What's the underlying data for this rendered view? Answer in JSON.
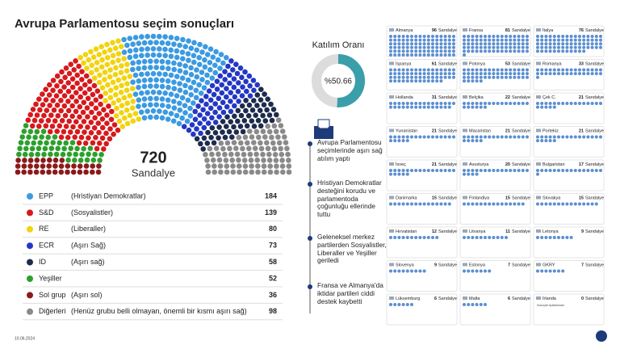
{
  "title": "Avrupa Parlamentosu seçim sonuçları",
  "parliament": {
    "total": 720,
    "total_label": "Sandalye",
    "groups": [
      {
        "name": "EPP",
        "desc": "(Hristiyan Demokratlar)",
        "seats": 184,
        "color": "#3b9ae1"
      },
      {
        "name": "S&D",
        "desc": "(Sosyalistler)",
        "seats": 139,
        "color": "#d7191c"
      },
      {
        "name": "RE",
        "desc": "(Liberaller)",
        "seats": 80,
        "color": "#f2d30f"
      },
      {
        "name": "ECR",
        "desc": "(Aşırı Sağ)",
        "seats": 73,
        "color": "#2337c6"
      },
      {
        "name": "ID",
        "desc": "(Aşırı sağ)",
        "seats": 58,
        "color": "#1d2b4c"
      },
      {
        "name": "Yeşiller",
        "seats": 52,
        "color": "#2ca02c"
      },
      {
        "name": "Sol grup",
        "desc": "(Aşırı sol)",
        "seats": 36,
        "color": "#8b1a1a"
      },
      {
        "name": "Diğerleri",
        "desc": "(Henüz grubu belli olmayan, önemli bir kısmı aşırı sağ)",
        "seats": 98,
        "color": "#8a8a8a"
      }
    ]
  },
  "turnout": {
    "title": "Katılım Oranı",
    "value": 50.66,
    "label": "%50.66",
    "color": "#3a9faa"
  },
  "notes": [
    "Avrupa Parlamentosu seçimlerinde aşırı sağ atılım yaptı",
    "Hristiyan Demokratlar desteğini korudu ve parlamentoda çoğunluğu ellerinde tuttu",
    "Geleneksel merkez partilerden Sosyalistler, Liberaller ve Yeşiller geriledi",
    "Fransa ve Almanya'da iktidar partileri ciddi destek kaybetti"
  ],
  "countries": {
    "unit": "Sandalye",
    "dot_color": "#5b8fd0",
    "items": [
      {
        "name": "Almanya",
        "seats": 96
      },
      {
        "name": "Fransa",
        "seats": 81
      },
      {
        "name": "İtalya",
        "seats": 76
      },
      {
        "name": "İspanya",
        "seats": 61
      },
      {
        "name": "Polonya",
        "seats": 53
      },
      {
        "name": "Romanya",
        "seats": 33
      },
      {
        "name": "Hollanda",
        "seats": 31
      },
      {
        "name": "Belçika",
        "seats": 22
      },
      {
        "name": "Çek C.",
        "seats": 21
      },
      {
        "name": "Yunanistan",
        "seats": 21
      },
      {
        "name": "Macaristan",
        "seats": 21
      },
      {
        "name": "Portekiz",
        "seats": 21
      },
      {
        "name": "İsveç",
        "seats": 21
      },
      {
        "name": "Avusturya",
        "seats": 20
      },
      {
        "name": "Bulgaristan",
        "seats": 17
      },
      {
        "name": "Danimarka",
        "seats": 15
      },
      {
        "name": "Finlandiya",
        "seats": 15
      },
      {
        "name": "Slovakya",
        "seats": 15
      },
      {
        "name": "Hırvatistan",
        "seats": 12
      },
      {
        "name": "Litvanya",
        "seats": 11
      },
      {
        "name": "Letonya",
        "seats": 9
      },
      {
        "name": "Slovenya",
        "seats": 9
      },
      {
        "name": "Estonya",
        "seats": 7
      },
      {
        "name": "GKRY",
        "seats": 7
      },
      {
        "name": "Lüksemburg",
        "seats": 6
      },
      {
        "name": "Malta",
        "seats": 6
      },
      {
        "name": "İrlanda",
        "seats": 0
      }
    ],
    "footnote": "Sonuçlar Açıklanmadı"
  },
  "date": "10.06.2024"
}
